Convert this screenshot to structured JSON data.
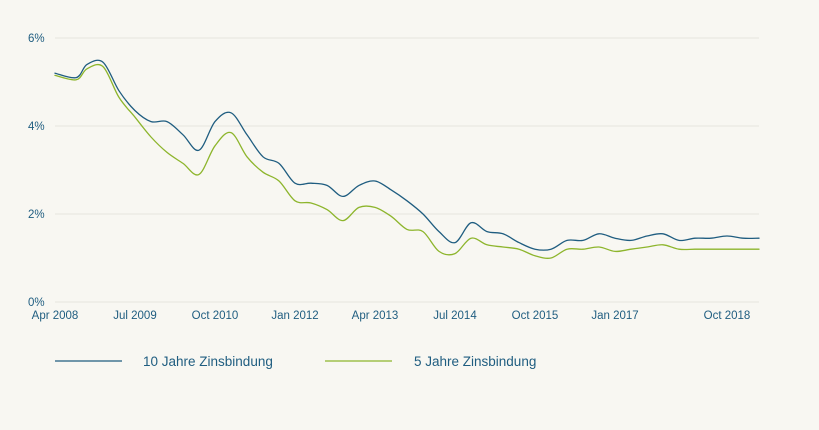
{
  "chart_data": {
    "type": "line",
    "title": "",
    "xlabel": "",
    "ylabel": "",
    "ylim": [
      0,
      6
    ],
    "y_ticks": [
      {
        "value": 0,
        "label": "0%"
      },
      {
        "value": 2,
        "label": "2%"
      },
      {
        "value": 4,
        "label": "4%"
      },
      {
        "value": 6,
        "label": "6%"
      }
    ],
    "xlim": [
      "2008-04",
      "2019-04"
    ],
    "x_ticks": [
      {
        "value": "2008-04",
        "label": "Apr 2008"
      },
      {
        "value": "2009-07",
        "label": "Jul 2009"
      },
      {
        "value": "2010-10",
        "label": "Oct 2010"
      },
      {
        "value": "2012-01",
        "label": "Jan 2012"
      },
      {
        "value": "2013-04",
        "label": "Apr 2013"
      },
      {
        "value": "2014-07",
        "label": "Jul 2014"
      },
      {
        "value": "2015-10",
        "label": "Oct 2015"
      },
      {
        "value": "2017-01",
        "label": "Jan 2017"
      },
      {
        "value": "2018-10",
        "label": "Oct 2018"
      }
    ],
    "grid": "horizontal",
    "legend_position": "bottom-left",
    "x": [
      "2008-04",
      "2008-08",
      "2008-10",
      "2009-01",
      "2009-04",
      "2009-07",
      "2009-10",
      "2010-01",
      "2010-04",
      "2010-07",
      "2010-10",
      "2011-01",
      "2011-04",
      "2011-07",
      "2011-10",
      "2012-01",
      "2012-04",
      "2012-07",
      "2012-10",
      "2013-01",
      "2013-04",
      "2013-07",
      "2013-10",
      "2014-01",
      "2014-04",
      "2014-07",
      "2014-10",
      "2015-01",
      "2015-04",
      "2015-07",
      "2015-10",
      "2016-01",
      "2016-04",
      "2016-07",
      "2016-10",
      "2017-01",
      "2017-04",
      "2017-07",
      "2017-10",
      "2018-01",
      "2018-04",
      "2018-07",
      "2018-10",
      "2019-01",
      "2019-04"
    ],
    "series": [
      {
        "name": "10 Jahre Zinsbindung",
        "color": "#1f5d80",
        "values": [
          5.2,
          5.1,
          5.4,
          5.45,
          4.8,
          4.35,
          4.1,
          4.1,
          3.8,
          3.45,
          4.1,
          4.3,
          3.8,
          3.3,
          3.15,
          2.7,
          2.7,
          2.65,
          2.4,
          2.65,
          2.75,
          2.55,
          2.3,
          2.0,
          1.6,
          1.35,
          1.8,
          1.6,
          1.55,
          1.35,
          1.2,
          1.2,
          1.4,
          1.4,
          1.55,
          1.45,
          1.4,
          1.5,
          1.55,
          1.4,
          1.45,
          1.45,
          1.5,
          1.45,
          1.45
        ]
      },
      {
        "name": "5 Jahre Zinsbindung",
        "color": "#8db52c",
        "values": [
          5.15,
          5.05,
          5.3,
          5.35,
          4.65,
          4.2,
          3.75,
          3.4,
          3.15,
          2.9,
          3.55,
          3.85,
          3.3,
          2.95,
          2.75,
          2.3,
          2.25,
          2.1,
          1.85,
          2.15,
          2.15,
          1.95,
          1.65,
          1.6,
          1.15,
          1.1,
          1.45,
          1.3,
          1.25,
          1.2,
          1.05,
          1.0,
          1.2,
          1.2,
          1.25,
          1.15,
          1.2,
          1.25,
          1.3,
          1.2,
          1.2,
          1.2,
          1.2,
          1.2,
          1.2
        ]
      }
    ]
  }
}
